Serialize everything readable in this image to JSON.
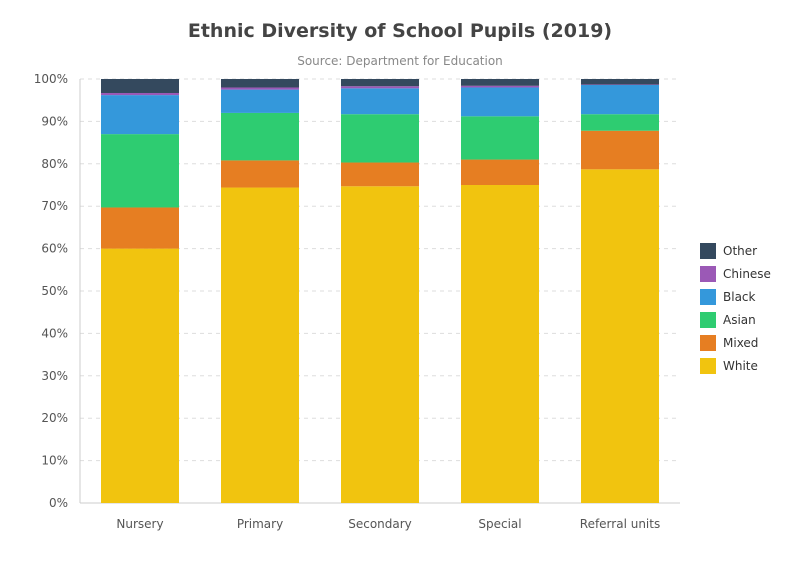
{
  "chart_data": {
    "type": "bar",
    "stacked": true,
    "title": "Ethnic Diversity of School Pupils (2019)",
    "subtitle": "Source: Department for Education",
    "categories": [
      "Nursery",
      "Primary",
      "Secondary",
      "Special",
      "Referral units"
    ],
    "y_ticks": [
      "0%",
      "10%",
      "20%",
      "30%",
      "40%",
      "50%",
      "60%",
      "70%",
      "80%",
      "90%",
      "100%"
    ],
    "ylim": [
      0,
      100
    ],
    "grid": true,
    "legend_position": "right",
    "series": [
      {
        "name": "White",
        "color": "#f1c40f",
        "values": [
          60.0,
          74.4,
          74.7,
          75.0,
          78.7
        ]
      },
      {
        "name": "Mixed",
        "color": "#e67e22",
        "values": [
          9.7,
          6.4,
          5.6,
          6.0,
          9.1
        ]
      },
      {
        "name": "Asian",
        "color": "#2ecc71",
        "values": [
          17.3,
          11.2,
          11.4,
          10.2,
          3.9
        ]
      },
      {
        "name": "Black",
        "color": "#3498db",
        "values": [
          9.2,
          5.5,
          6.1,
          6.8,
          6.9
        ]
      },
      {
        "name": "Chinese",
        "color": "#9b59b6",
        "values": [
          0.5,
          0.5,
          0.5,
          0.4,
          0.1
        ]
      },
      {
        "name": "Other",
        "color": "#34495e",
        "values": [
          3.3,
          2.0,
          1.7,
          1.6,
          1.3
        ]
      }
    ]
  }
}
